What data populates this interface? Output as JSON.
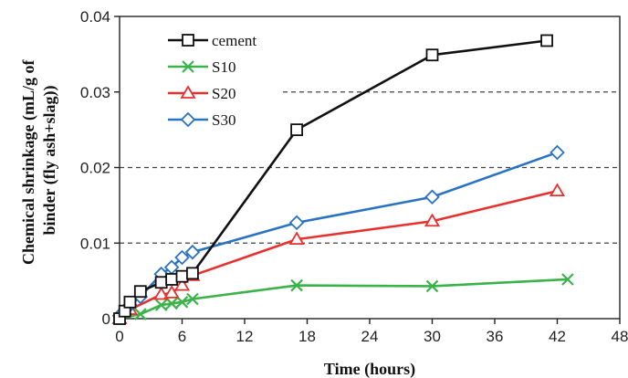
{
  "chart_data": {
    "type": "line",
    "xlabel": "Time (hours)",
    "ylabel": "Chemical shrinkage (mL/g of binder (fly ash+slag))",
    "ylabel_lines": [
      "Chemical shrinkage (mL/g of",
      "binder (fly ash+slag))"
    ],
    "xlim": [
      0,
      48
    ],
    "ylim": [
      0,
      0.04
    ],
    "x_ticks": [
      0,
      6,
      12,
      18,
      24,
      30,
      36,
      42,
      48
    ],
    "y_ticks": [
      0,
      0.01,
      0.02,
      0.03,
      0.04
    ],
    "x_tick_labels": [
      "0",
      "6",
      "12",
      "18",
      "24",
      "30",
      "36",
      "42",
      "48"
    ],
    "y_tick_labels": [
      "0",
      "0.01",
      "0.02",
      "0.03",
      "0.04"
    ],
    "grid": "horizontal dashed",
    "legend_position": "top-left",
    "series": [
      {
        "name": "cement",
        "color": "#111111",
        "marker": "square",
        "x": [
          0,
          0.5,
          1,
          2,
          4,
          5,
          6,
          7,
          17,
          30,
          41
        ],
        "y": [
          0,
          0.001,
          0.0022,
          0.0036,
          0.0048,
          0.0052,
          0.0056,
          0.006,
          0.025,
          0.0349,
          0.0368
        ]
      },
      {
        "name": "S10",
        "color": "#3cb34a",
        "marker": "x",
        "x": [
          0,
          2,
          4,
          5,
          6,
          7,
          17,
          30,
          43
        ],
        "y": [
          0,
          0.0006,
          0.0018,
          0.002,
          0.0022,
          0.0026,
          0.0044,
          0.0043,
          0.0052
        ]
      },
      {
        "name": "S20",
        "color": "#e8312f",
        "marker": "triangle",
        "x": [
          0,
          1,
          4,
          5,
          6,
          7,
          17,
          30,
          42
        ],
        "y": [
          0,
          0.0012,
          0.0032,
          0.0034,
          0.0044,
          0.0057,
          0.0105,
          0.0129,
          0.0169
        ]
      },
      {
        "name": "S30",
        "color": "#2a73c3",
        "marker": "diamond",
        "x": [
          0,
          1,
          2,
          4,
          5,
          6,
          7,
          17,
          30,
          42
        ],
        "y": [
          0.0004,
          0.0018,
          0.0029,
          0.0059,
          0.0068,
          0.0081,
          0.0088,
          0.0127,
          0.0161,
          0.022
        ]
      }
    ]
  }
}
